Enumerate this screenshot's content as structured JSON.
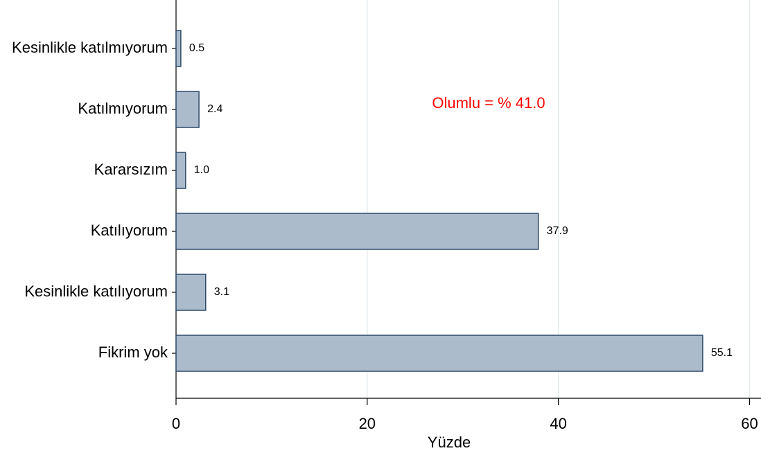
{
  "chart_data": {
    "type": "bar",
    "orientation": "horizontal",
    "categories": [
      "Kesinlikle katılmıyorum",
      "Katılmıyorum",
      "Kararsızım",
      "Katılıyorum",
      "Kesinlikle katılıyorum",
      "Fikrim yok"
    ],
    "values": [
      0.5,
      2.4,
      1.0,
      37.9,
      3.1,
      55.1
    ],
    "value_labels": [
      "0.5",
      "2.4",
      "1.0",
      "37.9",
      "3.1",
      "55.1"
    ],
    "color": "#abbbcc",
    "edge_color": "#2e4a6b",
    "xlim": [
      0,
      61.2
    ],
    "xticks": [
      0,
      20,
      40,
      60
    ],
    "grid": true,
    "xlabel": "Yüzde",
    "annotation": "Olumlu = % 41.0",
    "annotation_color": "#ff0000"
  }
}
